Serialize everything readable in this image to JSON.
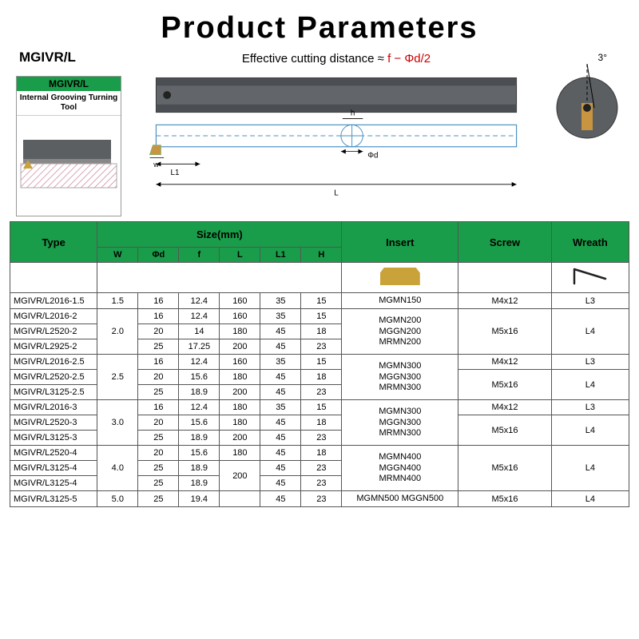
{
  "title": "Product Parameters",
  "model_label": "MGIVR/L",
  "legend": {
    "header": "MGIVR/L",
    "title": "Internal Grooving Turning Tool"
  },
  "cutting_distance": {
    "label_black": "Effective cutting distance ≈ ",
    "formula_red": "f − Φd/2"
  },
  "angle_label": "3°",
  "diagram_labels": {
    "w": "w",
    "L1": "L1",
    "h": "h",
    "phi_d": "Φd",
    "L": "L"
  },
  "table": {
    "headers": {
      "type": "Type",
      "size": "Size(mm)",
      "insert": "Insert",
      "screw": "Screw",
      "wreath": "Wreath",
      "size_sub": [
        "W",
        "Φd",
        "f",
        "L",
        "L1",
        "H"
      ]
    },
    "colors": {
      "header_bg": "#1a9d4a",
      "border": "#555555",
      "insert_icon": "#c9a23a"
    },
    "rows": [
      {
        "type": "MGIVR/L2016-1.5",
        "W": "1.5",
        "d": "16",
        "f": "12.4",
        "L": "160",
        "L1": "35",
        "H": "15"
      },
      {
        "type": "MGIVR/L2016-2",
        "W": "",
        "d": "16",
        "f": "12.4",
        "L": "160",
        "L1": "35",
        "H": "15"
      },
      {
        "type": "MGIVR/L2520-2",
        "W": "2.0",
        "d": "20",
        "f": "14",
        "L": "180",
        "L1": "45",
        "H": "18"
      },
      {
        "type": "MGIVR/L2925-2",
        "W": "",
        "d": "25",
        "f": "17.25",
        "L": "200",
        "L1": "45",
        "H": "23"
      },
      {
        "type": "MGIVR/L2016-2.5",
        "W": "",
        "d": "16",
        "f": "12.4",
        "L": "160",
        "L1": "35",
        "H": "15"
      },
      {
        "type": "MGIVR/L2520-2.5",
        "W": "2.5",
        "d": "20",
        "f": "15.6",
        "L": "180",
        "L1": "45",
        "H": "18"
      },
      {
        "type": "MGIVR/L3125-2.5",
        "W": "",
        "d": "25",
        "f": "18.9",
        "L": "200",
        "L1": "45",
        "H": "23"
      },
      {
        "type": "MGIVR/L2016-3",
        "W": "",
        "d": "16",
        "f": "12.4",
        "L": "180",
        "L1": "35",
        "H": "15"
      },
      {
        "type": "MGIVR/L2520-3",
        "W": "3.0",
        "d": "20",
        "f": "15.6",
        "L": "180",
        "L1": "45",
        "H": "18"
      },
      {
        "type": "MGIVR/L3125-3",
        "W": "",
        "d": "25",
        "f": "18.9",
        "L": "200",
        "L1": "45",
        "H": "23"
      },
      {
        "type": "MGIVR/L2520-4",
        "W": "",
        "d": "20",
        "f": "15.6",
        "L": "180",
        "L1": "45",
        "H": "18"
      },
      {
        "type": "MGIVR/L3125-4",
        "W": "4.0",
        "d": "25",
        "f": "18.9",
        "L": "",
        "L1": "45",
        "H": "23"
      },
      {
        "type": "MGIVR/L3125-4",
        "W": "",
        "d": "25",
        "f": "18.9",
        "L": "200",
        "L1": "45",
        "H": "23"
      },
      {
        "type": "MGIVR/L3125-5",
        "W": "5.0",
        "d": "25",
        "f": "19.4",
        "L": "",
        "L1": "45",
        "H": "23"
      }
    ],
    "inserts": [
      {
        "label": "MGMN150",
        "rowspan": 1
      },
      {
        "label": "MGMN200\nMGGN200\nMRMN200",
        "rowspan": 3
      },
      {
        "label": "MGMN300\nMGGN300\nMRMN300",
        "rowspan": 3
      },
      {
        "label": "MGMN300\nMGGN300\nMRMN300",
        "rowspan": 3
      },
      {
        "label": "MGMN400\nMGGN400\nMRMN400",
        "rowspan": 3
      },
      {
        "label": "MGMN500 MGGN500",
        "rowspan": 1
      }
    ],
    "screws": [
      {
        "label": "M4x12",
        "rowspan": 1
      },
      {
        "label": "M5x16",
        "rowspan": 3
      },
      {
        "label": "M4x12",
        "rowspan": 1
      },
      {
        "label": "M5x16",
        "rowspan": 2
      },
      {
        "label": "M4x12",
        "rowspan": 1
      },
      {
        "label": "M5x16",
        "rowspan": 2
      },
      {
        "label": "M5x16",
        "rowspan": 3
      },
      {
        "label": "M5x16",
        "rowspan": 1
      }
    ],
    "wreaths": [
      {
        "label": "L3",
        "rowspan": 1
      },
      {
        "label": "L4",
        "rowspan": 3
      },
      {
        "label": "L3",
        "rowspan": 1
      },
      {
        "label": "L4",
        "rowspan": 2
      },
      {
        "label": "L3",
        "rowspan": 1
      },
      {
        "label": "L4",
        "rowspan": 2
      },
      {
        "label": "L4",
        "rowspan": 3
      },
      {
        "label": "L4",
        "rowspan": 1
      }
    ],
    "w_merges": [
      {
        "start": 0,
        "span": 1,
        "val": "1.5"
      },
      {
        "start": 1,
        "span": 3,
        "val": "2.0"
      },
      {
        "start": 4,
        "span": 3,
        "val": "2.5"
      },
      {
        "start": 7,
        "span": 3,
        "val": "3.0"
      },
      {
        "start": 10,
        "span": 3,
        "val": "4.0"
      },
      {
        "start": 13,
        "span": 1,
        "val": "5.0"
      }
    ],
    "L_merges": {
      "11": {
        "span": 2,
        "val": "200"
      }
    }
  }
}
